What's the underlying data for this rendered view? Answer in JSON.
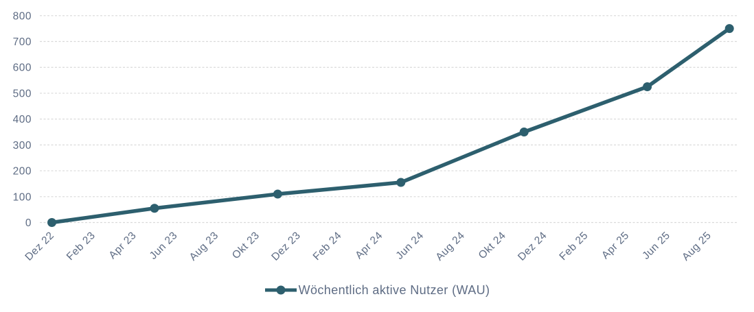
{
  "colors": {
    "series_line": "#2d5f6e",
    "marker_fill": "#2d5f6e",
    "axis_text": "#5e6c84",
    "gridline": "#d9d9d9",
    "background": "#ffffff"
  },
  "legend": {
    "label": "Wöchentlich aktive Nutzer (WAU)",
    "marker": "line-with-dot",
    "position": "bottom-center"
  },
  "chart_data": {
    "type": "line",
    "title": "",
    "xlabel": "",
    "ylabel": "",
    "ylim": [
      0,
      800
    ],
    "y_ticks": [
      0,
      100,
      200,
      300,
      400,
      500,
      600,
      700,
      800
    ],
    "x_tick_labels": [
      "Dez 22",
      "Feb 23",
      "Apr 23",
      "Jun 23",
      "Aug 23",
      "Okt 23",
      "Dez 23",
      "Feb 24",
      "Apr 24",
      "Jun 24",
      "Aug 24",
      "Okt 24",
      "Dez 24",
      "Feb 25",
      "Apr 25",
      "Jun 25",
      "Aug 25"
    ],
    "x_tick_interval_months": 2,
    "grid": "horizontal-dashed",
    "legend_position": "bottom-center",
    "series": [
      {
        "name": "Wöchentlich aktive Nutzer (WAU)",
        "points": [
          {
            "label": "Dez 22",
            "month": 0,
            "value": 0
          },
          {
            "label": "Mai 23",
            "month": 5,
            "value": 55
          },
          {
            "label": "Nov 23",
            "month": 11,
            "value": 110
          },
          {
            "label": "Mai 24",
            "month": 17,
            "value": 155
          },
          {
            "label": "Nov 24",
            "month": 23,
            "value": 350
          },
          {
            "label": "Mai 25",
            "month": 29,
            "value": 525
          },
          {
            "label": "Sep 25",
            "month": 33,
            "value": 750
          }
        ]
      }
    ]
  }
}
